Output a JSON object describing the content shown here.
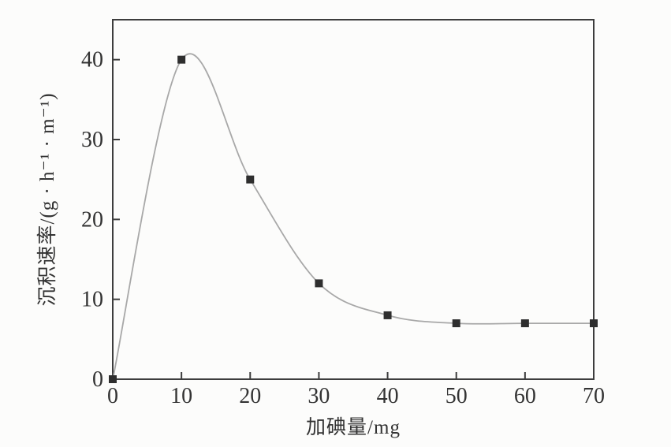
{
  "figure": {
    "background_color": "#fcfcfb",
    "axis_color": "#3d3d3d",
    "line_color": "#a8a8a8",
    "marker_color": "#2e2e2e",
    "text_color": "#333333"
  },
  "chart_data": {
    "type": "line",
    "title": "",
    "xlabel": "加碘量/mg",
    "ylabel": "沉积速率/(g · h⁻¹ · m⁻¹)",
    "x": [
      0,
      10,
      20,
      30,
      40,
      50,
      60,
      70
    ],
    "y": [
      0,
      40,
      25,
      12,
      8,
      7,
      7,
      7
    ],
    "xlim": [
      0,
      70
    ],
    "ylim": [
      0,
      45
    ],
    "xticks": [
      0,
      10,
      20,
      30,
      40,
      50,
      60,
      70
    ],
    "yticks": [
      0,
      10,
      20,
      30,
      40
    ],
    "marker": "filled-square",
    "marker_size": 10,
    "grid": false,
    "legend": null,
    "frame": "full-box",
    "tick_direction": "in"
  }
}
